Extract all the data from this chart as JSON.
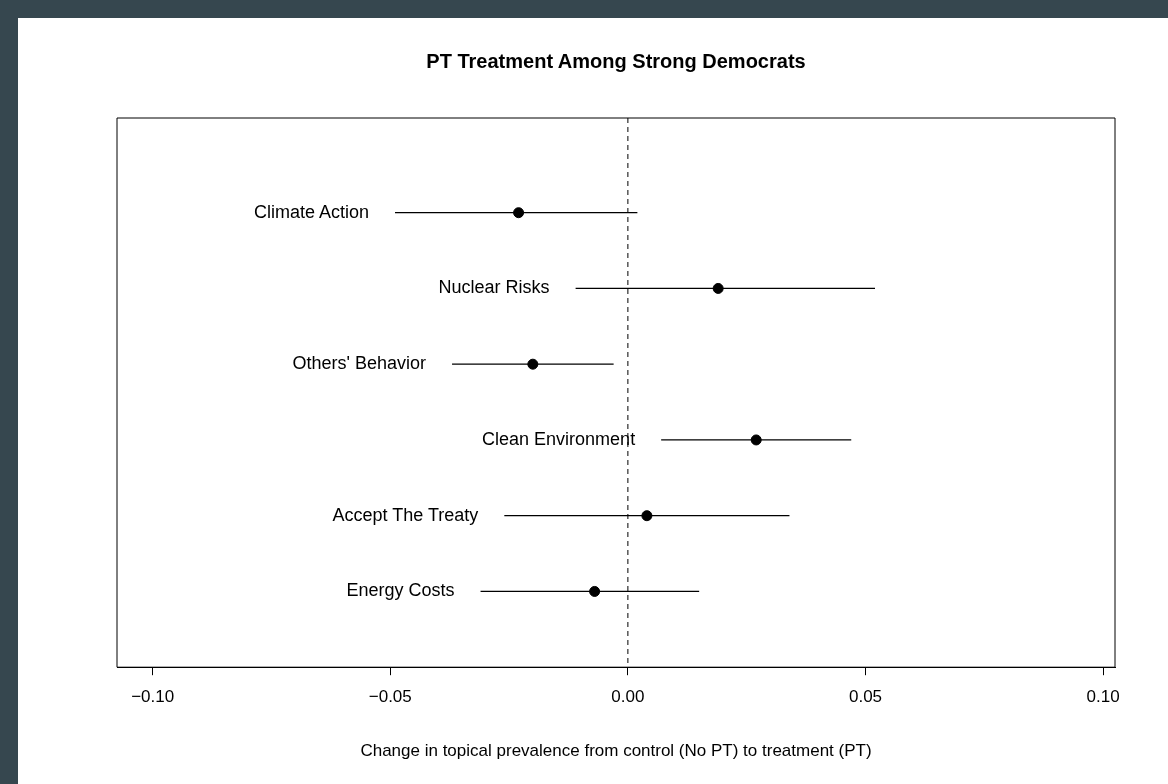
{
  "chart_data": {
    "type": "scatter",
    "orientation": "horizontal",
    "title": "PT Treatment Among Strong Democrats",
    "xlabel": "Change in topical prevalence from control (No PT) to treatment (PT)",
    "categories": [
      "Climate Action",
      "Nuclear Risks",
      "Others' Behavior",
      "Clean Environment",
      "Accept The Treaty",
      "Energy Costs"
    ],
    "values": [
      -0.023,
      0.019,
      -0.02,
      0.027,
      0.004,
      -0.007
    ],
    "errors": [
      [
        -0.049,
        0.002
      ],
      [
        -0.011,
        0.052
      ],
      [
        -0.037,
        -0.003
      ],
      [
        0.007,
        0.047
      ],
      [
        -0.026,
        0.034
      ],
      [
        -0.031,
        0.015
      ]
    ],
    "color": "#000000",
    "marker": "circle",
    "xlim": [
      -0.1075,
      0.1025
    ],
    "xticks": [
      {
        "value": -0.1,
        "label": "−0.10"
      },
      {
        "value": -0.05,
        "label": "−0.05"
      },
      {
        "value": 0,
        "label": "0.00"
      },
      {
        "value": 0.05,
        "label": "0.05"
      },
      {
        "value": 0.1,
        "label": "0.10"
      }
    ],
    "ref_lines": [
      {
        "axis": "x",
        "value": 0,
        "line_style": "dashed",
        "color": "#000000"
      }
    ],
    "grid": false,
    "legend": false,
    "tick_labels": "x"
  }
}
